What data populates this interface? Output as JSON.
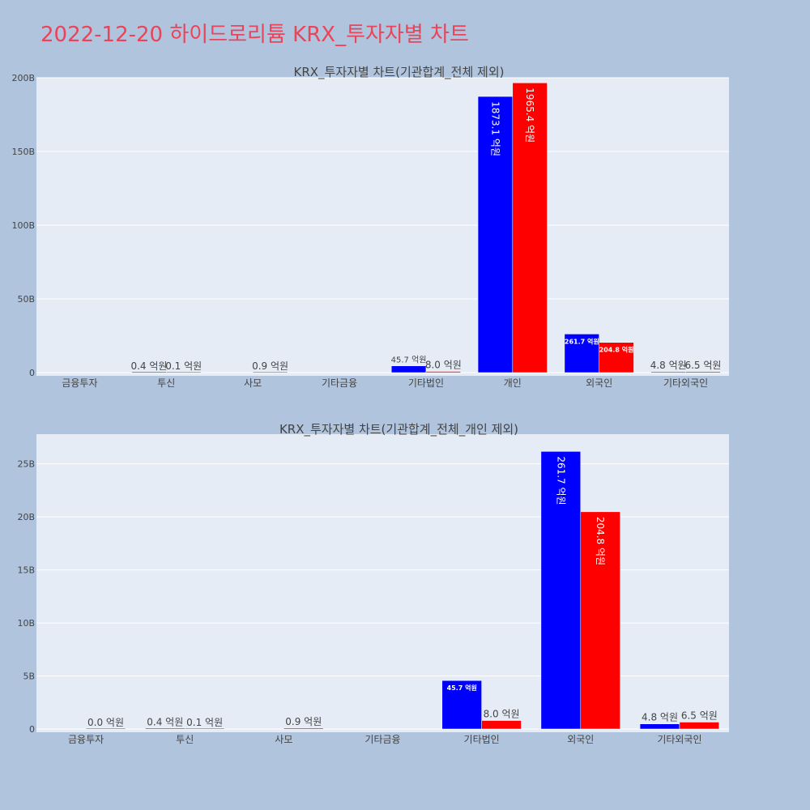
{
  "page": {
    "title": "2022-12-20 하이드로리튬 KRX_투자자별 차트"
  },
  "colors": {
    "background": "#b0c4de",
    "plot_bg": "#e5ecf6",
    "series_a": "#0000ff",
    "series_b": "#ff0000",
    "title_color": "#e8455a",
    "text": "#444444"
  },
  "chart_data": [
    {
      "type": "bar",
      "title": "KRX_투자자별 차트(기관합계_전체 제외)",
      "categories": [
        "금융투자",
        "투신",
        "사모",
        "기타금융",
        "기타법인",
        "개인",
        "외국인",
        "기타외국인"
      ],
      "series": [
        {
          "values": [
            0,
            0.04,
            0,
            0,
            4.57,
            187.31,
            26.17,
            0.48
          ],
          "labels": [
            "",
            "0.4 억원",
            "",
            "",
            "45.7 억원",
            "1873.1 억원",
            "261.7 억원",
            "4.8 억원"
          ]
        },
        {
          "values": [
            0,
            0.01,
            0.09,
            0,
            0.8,
            196.54,
            20.48,
            0.65
          ],
          "labels": [
            "",
            "0.1 억원",
            "0.9 억원",
            "",
            "8.0 억원",
            "1965.4 억원",
            "204.8 억원",
            "6.5 억원"
          ]
        }
      ],
      "ylim": [
        0,
        200
      ],
      "yticks": [
        0,
        50,
        100,
        150,
        200
      ],
      "ytick_labels": [
        "0",
        "50B",
        "100B",
        "150B",
        "200B"
      ],
      "grid": true
    },
    {
      "type": "bar",
      "title": "KRX_투자자별 차트(기관합계_전체_개인 제외)",
      "categories": [
        "금융투자",
        "투신",
        "사모",
        "기타금융",
        "기타법인",
        "외국인",
        "기타외국인"
      ],
      "series": [
        {
          "values": [
            0,
            0.04,
            0,
            0,
            4.57,
            26.17,
            0.48
          ],
          "labels": [
            "",
            "0.4 억원",
            "",
            "",
            "45.7 억원",
            "261.7 억원",
            "4.8 억원"
          ]
        },
        {
          "values": [
            0.003,
            0.01,
            0.09,
            0,
            0.8,
            20.48,
            0.65
          ],
          "labels": [
            "0.0 억원",
            "0.1 억원",
            "0.9 억원",
            "",
            "8.0 억원",
            "204.8 억원",
            "6.5 억원"
          ]
        }
      ],
      "ylim": [
        0,
        27.8
      ],
      "yticks": [
        0,
        5,
        10,
        15,
        20,
        25
      ],
      "ytick_labels": [
        "0",
        "5B",
        "10B",
        "15B",
        "20B",
        "25B"
      ],
      "grid": true
    }
  ]
}
